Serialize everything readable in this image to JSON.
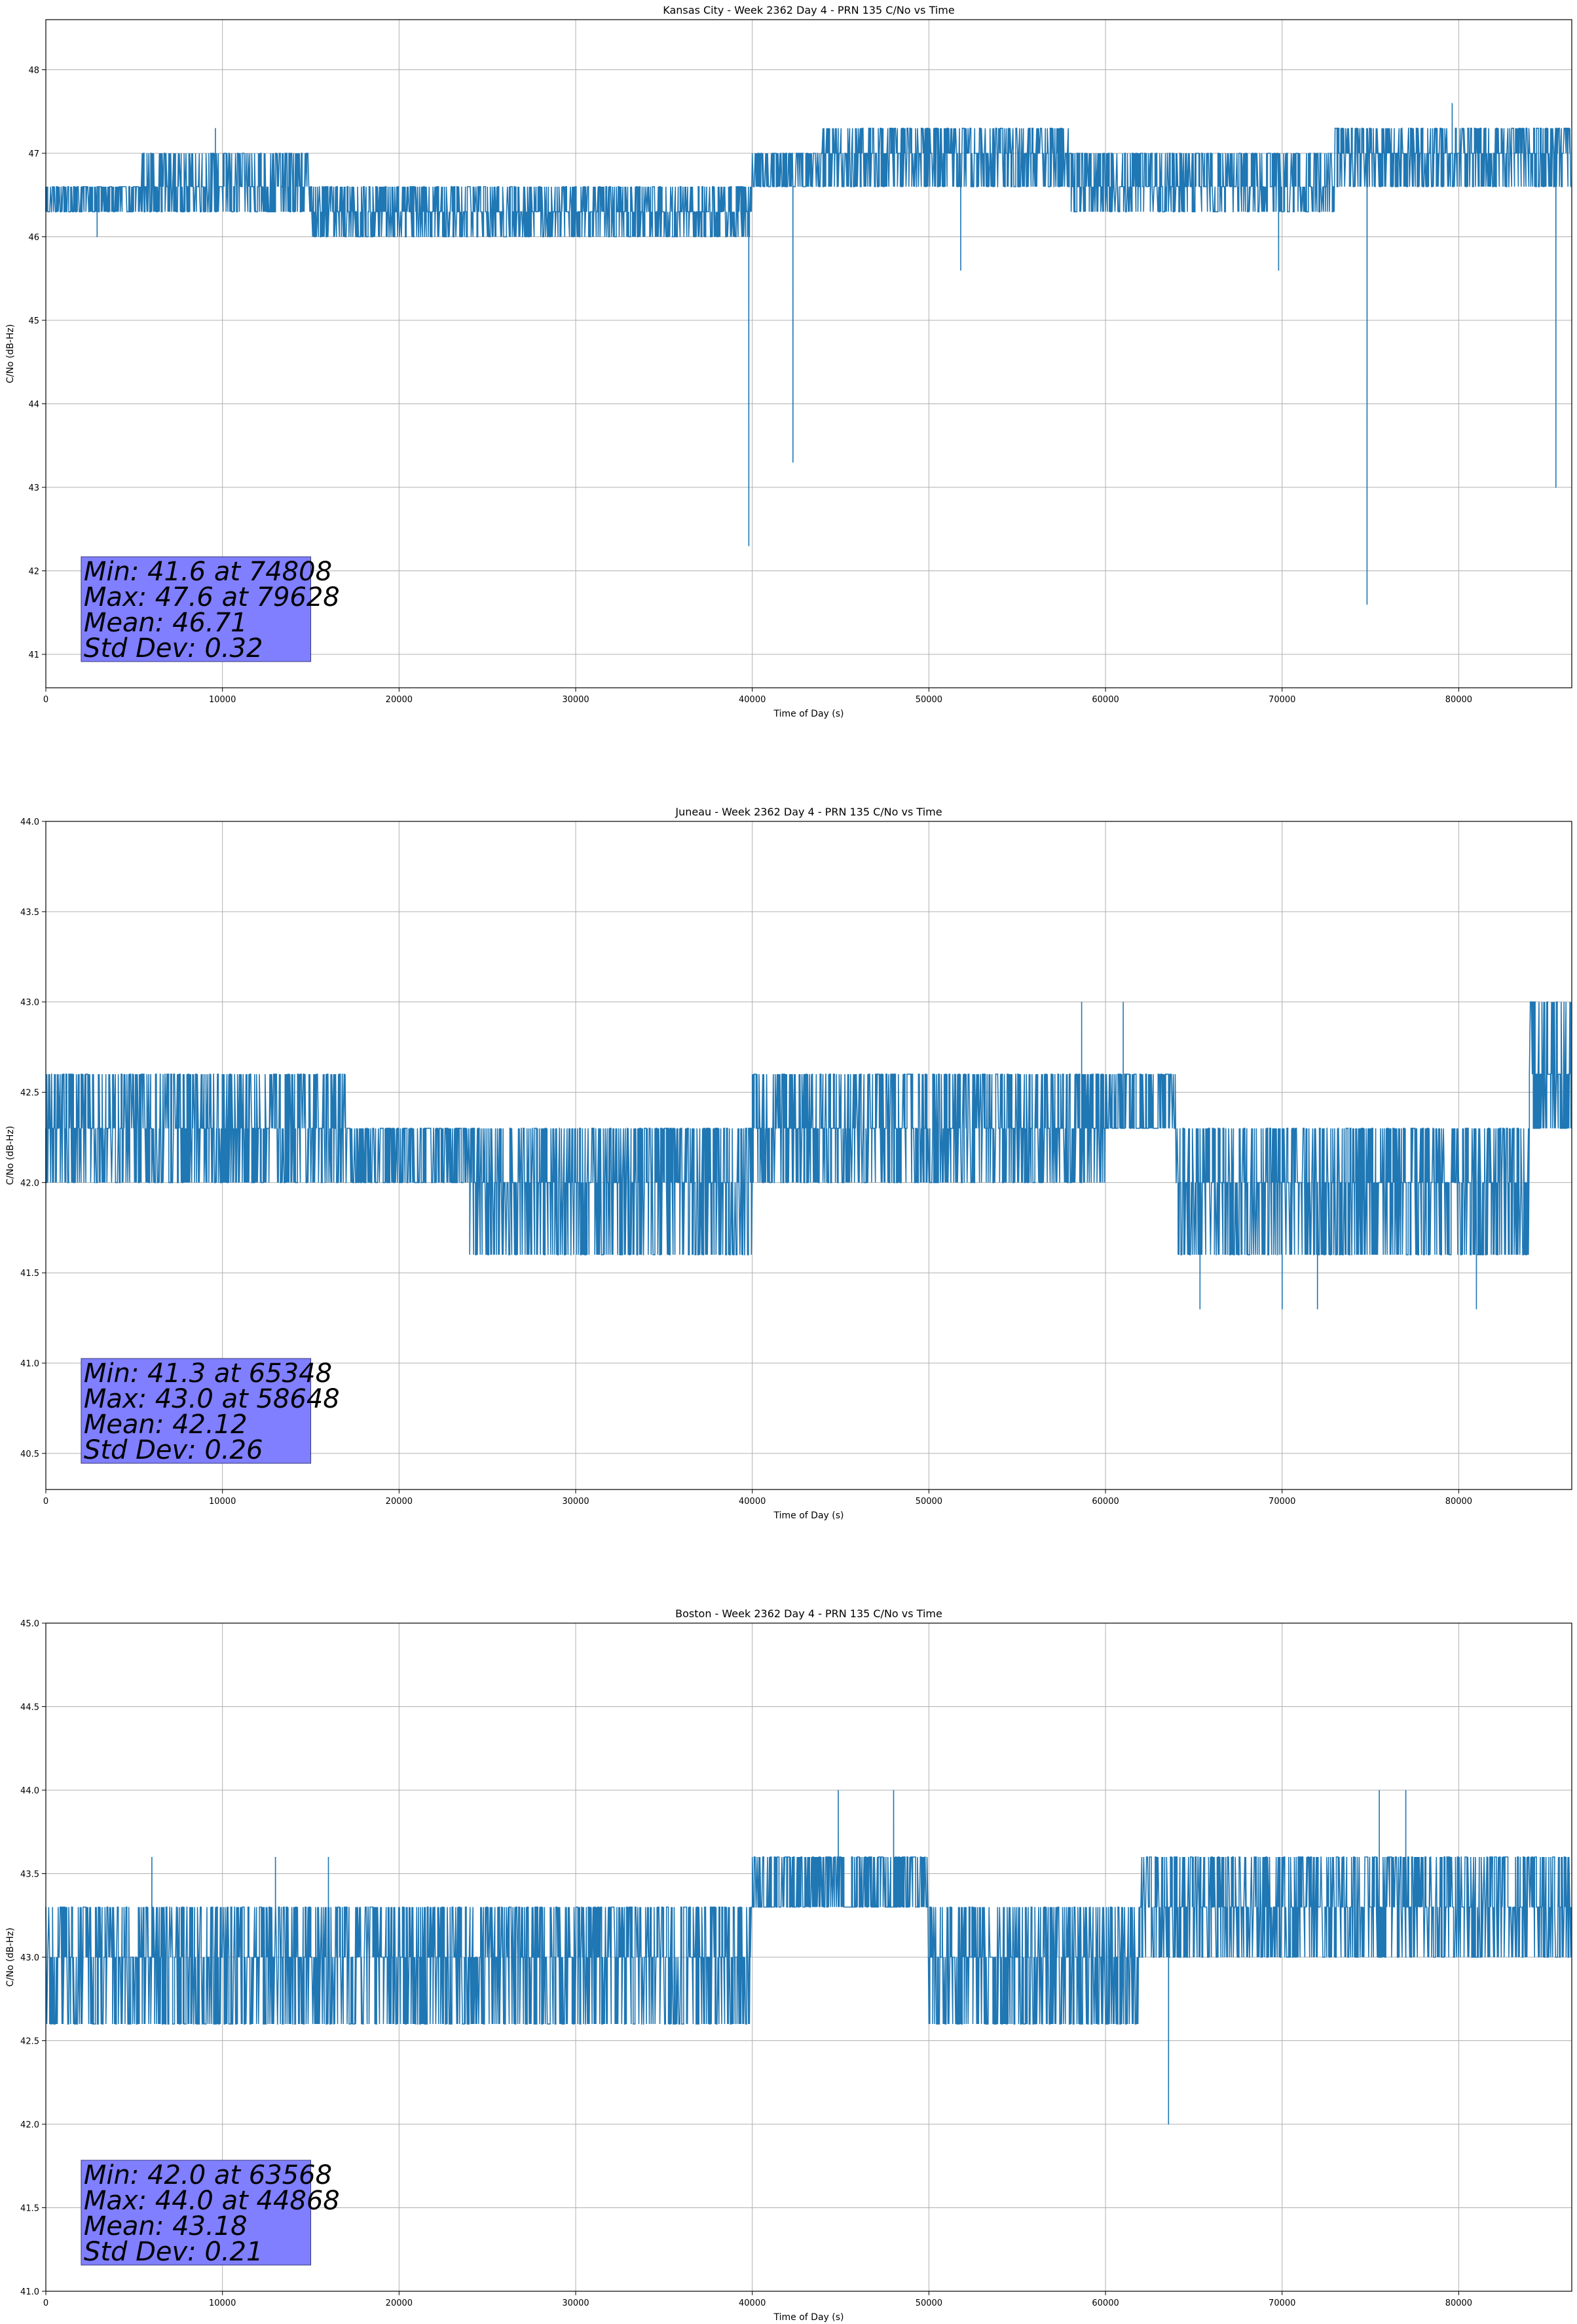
{
  "chart_data": [
    {
      "type": "line",
      "title": "Kansas City - Week 2362 Day 4 - PRN 135 C/No vs Time",
      "xlabel": "Time of Day (s)",
      "ylabel": "C/No (dB-Hz)",
      "xlim": [
        0,
        86400
      ],
      "ylim": [
        40.6,
        48.6
      ],
      "xticks": [
        0,
        10000,
        20000,
        30000,
        40000,
        50000,
        60000,
        70000,
        80000
      ],
      "yticks": [
        41,
        42,
        43,
        44,
        45,
        46,
        47,
        48
      ],
      "grid": true,
      "color": "#1f77b4",
      "levels": [
        {
          "from": 0,
          "to": 5400,
          "values": [
            46.3,
            46.6
          ]
        },
        {
          "from": 5400,
          "to": 15000,
          "values": [
            46.3,
            46.6,
            47.0
          ]
        },
        {
          "from": 15000,
          "to": 35000,
          "values": [
            46.3,
            46.6,
            46.0
          ]
        },
        {
          "from": 35000,
          "to": 40000,
          "values": [
            46.0,
            46.3,
            46.6
          ]
        },
        {
          "from": 40000,
          "to": 44000,
          "values": [
            46.6,
            47.0
          ]
        },
        {
          "from": 44000,
          "to": 58000,
          "values": [
            46.6,
            47.0,
            47.3
          ]
        },
        {
          "from": 58000,
          "to": 73000,
          "values": [
            46.6,
            47.0,
            46.3
          ]
        },
        {
          "from": 73000,
          "to": 86400,
          "values": [
            46.6,
            47.0,
            47.3
          ]
        }
      ],
      "spikes": [
        {
          "x": 2900,
          "y": 46.0
        },
        {
          "x": 9600,
          "y": 47.3
        },
        {
          "x": 39800,
          "y": 42.3
        },
        {
          "x": 42300,
          "y": 43.3
        },
        {
          "x": 51800,
          "y": 45.6
        },
        {
          "x": 69800,
          "y": 45.6
        },
        {
          "x": 74808,
          "y": 41.6
        },
        {
          "x": 79628,
          "y": 47.6
        },
        {
          "x": 85500,
          "y": 43.0
        }
      ],
      "stats": {
        "min": "Min: 41.6 at 74808",
        "max": "Max: 47.6 at 79628",
        "mean": "Mean: 46.71",
        "std": "Std Dev: 0.32"
      }
    },
    {
      "type": "line",
      "title": "Juneau - Week 2362 Day 4 - PRN 135 C/No vs Time",
      "xlabel": "Time of Day (s)",
      "ylabel": "C/No (dB-Hz)",
      "xlim": [
        0,
        86400
      ],
      "ylim": [
        40.3,
        44.0
      ],
      "xticks": [
        0,
        10000,
        20000,
        30000,
        40000,
        50000,
        60000,
        70000,
        80000
      ],
      "yticks": [
        40.5,
        41.0,
        41.5,
        42.0,
        42.5,
        43.0,
        43.5,
        44.0
      ],
      "grid": true,
      "color": "#1f77b4",
      "levels": [
        {
          "from": 0,
          "to": 17000,
          "values": [
            42.3,
            42.6,
            42.0
          ]
        },
        {
          "from": 17000,
          "to": 24000,
          "values": [
            42.0,
            42.3
          ]
        },
        {
          "from": 24000,
          "to": 40000,
          "values": [
            42.0,
            42.3,
            41.6
          ]
        },
        {
          "from": 40000,
          "to": 60000,
          "values": [
            42.0,
            42.3,
            42.6
          ]
        },
        {
          "from": 60000,
          "to": 64000,
          "values": [
            42.3,
            42.6
          ]
        },
        {
          "from": 64000,
          "to": 84000,
          "values": [
            42.0,
            42.3,
            41.6
          ]
        },
        {
          "from": 84000,
          "to": 86400,
          "values": [
            42.6,
            42.3,
            43.0
          ]
        }
      ],
      "spikes": [
        {
          "x": 58648,
          "y": 43.0
        },
        {
          "x": 61000,
          "y": 43.0
        },
        {
          "x": 65348,
          "y": 41.3
        },
        {
          "x": 70000,
          "y": 41.3
        },
        {
          "x": 72000,
          "y": 41.3
        },
        {
          "x": 81000,
          "y": 41.3
        },
        {
          "x": 85000,
          "y": 43.0
        }
      ],
      "stats": {
        "min": "Min: 41.3 at 65348",
        "max": "Max: 43.0 at 58648",
        "mean": "Mean: 42.12",
        "std": "Std Dev: 0.26"
      }
    },
    {
      "type": "line",
      "title": "Boston - Week 2362 Day 4 - PRN 135 C/No vs Time",
      "xlabel": "Time of Day (s)",
      "ylabel": "C/No (dB-Hz)",
      "xlim": [
        0,
        86400
      ],
      "ylim": [
        41.0,
        45.0
      ],
      "xticks": [
        0,
        10000,
        20000,
        30000,
        40000,
        50000,
        60000,
        70000,
        80000
      ],
      "yticks": [
        41.0,
        41.5,
        42.0,
        42.5,
        43.0,
        43.5,
        44.0,
        44.5,
        45.0
      ],
      "grid": true,
      "color": "#1f77b4",
      "levels": [
        {
          "from": 0,
          "to": 40000,
          "values": [
            43.0,
            43.3,
            42.6
          ]
        },
        {
          "from": 40000,
          "to": 50000,
          "values": [
            43.3,
            43.6
          ]
        },
        {
          "from": 50000,
          "to": 62000,
          "values": [
            43.0,
            43.3,
            42.6
          ]
        },
        {
          "from": 62000,
          "to": 86400,
          "values": [
            43.3,
            43.6,
            43.0
          ]
        }
      ],
      "spikes": [
        {
          "x": 6000,
          "y": 43.6
        },
        {
          "x": 13000,
          "y": 43.6
        },
        {
          "x": 16000,
          "y": 43.6
        },
        {
          "x": 44868,
          "y": 44.0
        },
        {
          "x": 48000,
          "y": 44.0
        },
        {
          "x": 63568,
          "y": 42.0
        },
        {
          "x": 75500,
          "y": 44.0
        },
        {
          "x": 77000,
          "y": 44.0
        }
      ],
      "stats": {
        "min": "Min: 42.0 at 63568",
        "max": "Max: 44.0 at 44868",
        "mean": "Mean: 43.18",
        "std": "Std Dev: 0.21"
      }
    }
  ]
}
